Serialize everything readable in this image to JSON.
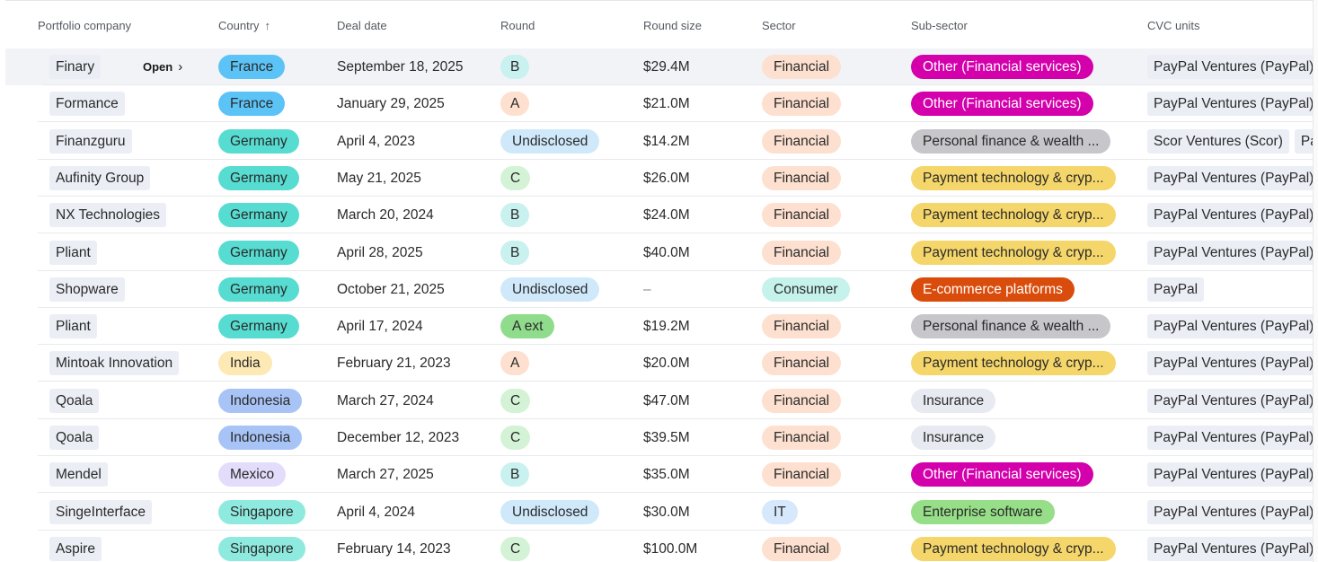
{
  "columns": {
    "company": "Portfolio company",
    "country": "Country",
    "deal_date": "Deal date",
    "round": "Round",
    "round_size": "Round size",
    "sector": "Sector",
    "sub_sector": "Sub-sector",
    "cvc_units": "CVC units"
  },
  "sort": {
    "column": "Country",
    "direction": "ascending",
    "icon": "arrow-up-icon"
  },
  "open_label": "Open",
  "colors": {
    "country": {
      "France": "#5cc3f7",
      "Germany": "#57dcd1",
      "India": "#fde9b4",
      "Indonesia": "#a8c4f7",
      "Mexico": "#e3dcfb",
      "Singapore": "#8eeade"
    },
    "round": {
      "A": "#fde0cf",
      "B": "#c9f1ef",
      "C": "#d4f3d6",
      "Undisclosed": "#cfe9fb",
      "A ext": "#8fdc8c"
    },
    "sector": {
      "Financial": "#fde0cf",
      "Consumer": "#c6f2ec",
      "IT": "#d6e8fb"
    },
    "sub_sector": {
      "Other (Financial services)": {
        "bg": "#d400ab",
        "fg": "#ffffff"
      },
      "Personal finance & wealth ...": {
        "bg": "#c6c6cb",
        "fg": "#2a2a2a"
      },
      "Payment technology & cryp...": {
        "bg": "#f5d66a",
        "fg": "#2a2a2a"
      },
      "E-commerce platforms": {
        "bg": "#d94c0c",
        "fg": "#ffffff"
      },
      "Insurance": {
        "bg": "#e8eaf1",
        "fg": "#2a2a2a"
      },
      "Enterprise software": {
        "bg": "#96de87",
        "fg": "#2a2a2a"
      }
    }
  },
  "rows": [
    {
      "company": "Finary",
      "country": "France",
      "deal_date": "September 18, 2025",
      "round": "B",
      "round_size": "$29.4M",
      "sector": "Financial",
      "sub_sector": "Other (Financial services)",
      "cvc_units": [
        "PayPal Ventures (PayPal)"
      ],
      "highlighted": true
    },
    {
      "company": "Formance",
      "country": "France",
      "deal_date": "January 29, 2025",
      "round": "A",
      "round_size": "$21.0M",
      "sector": "Financial",
      "sub_sector": "Other (Financial services)",
      "cvc_units": [
        "PayPal Ventures (PayPal)"
      ]
    },
    {
      "company": "Finanzguru",
      "country": "Germany",
      "deal_date": "April 4, 2023",
      "round": "Undisclosed",
      "round_size": "$14.2M",
      "sector": "Financial",
      "sub_sector": "Personal finance & wealth ...",
      "cvc_units": [
        "Scor Ventures (Scor)",
        "Pa"
      ]
    },
    {
      "company": "Aufinity Group",
      "country": "Germany",
      "deal_date": "May 21, 2025",
      "round": "C",
      "round_size": "$26.0M",
      "sector": "Financial",
      "sub_sector": "Payment technology & cryp...",
      "cvc_units": [
        "PayPal Ventures (PayPal)"
      ]
    },
    {
      "company": "NX Technologies",
      "country": "Germany",
      "deal_date": "March 20, 2024",
      "round": "B",
      "round_size": "$24.0M",
      "sector": "Financial",
      "sub_sector": "Payment technology & cryp...",
      "cvc_units": [
        "PayPal Ventures (PayPal)"
      ]
    },
    {
      "company": "Pliant",
      "country": "Germany",
      "deal_date": "April 28, 2025",
      "round": "B",
      "round_size": "$40.0M",
      "sector": "Financial",
      "sub_sector": "Payment technology & cryp...",
      "cvc_units": [
        "PayPal Ventures (PayPal)"
      ]
    },
    {
      "company": "Shopware",
      "country": "Germany",
      "deal_date": "October 21, 2025",
      "round": "Undisclosed",
      "round_size": "–",
      "sector": "Consumer",
      "sub_sector": "E-commerce platforms",
      "cvc_units": [
        "PayPal"
      ]
    },
    {
      "company": "Pliant",
      "country": "Germany",
      "deal_date": "April 17, 2024",
      "round": "A ext",
      "round_size": "$19.2M",
      "sector": "Financial",
      "sub_sector": "Personal finance & wealth ...",
      "cvc_units": [
        "PayPal Ventures (PayPal)"
      ]
    },
    {
      "company": "Mintoak Innovation",
      "country": "India",
      "deal_date": "February 21, 2023",
      "round": "A",
      "round_size": "$20.0M",
      "sector": "Financial",
      "sub_sector": "Payment technology & cryp...",
      "cvc_units": [
        "PayPal Ventures (PayPal)"
      ]
    },
    {
      "company": "Qoala",
      "country": "Indonesia",
      "deal_date": "March 27, 2024",
      "round": "C",
      "round_size": "$47.0M",
      "sector": "Financial",
      "sub_sector": "Insurance",
      "cvc_units": [
        "PayPal Ventures (PayPal)"
      ]
    },
    {
      "company": "Qoala",
      "country": "Indonesia",
      "deal_date": "December 12, 2023",
      "round": "C",
      "round_size": "$39.5M",
      "sector": "Financial",
      "sub_sector": "Insurance",
      "cvc_units": [
        "PayPal Ventures (PayPal)"
      ]
    },
    {
      "company": "Mendel",
      "country": "Mexico",
      "deal_date": "March 27, 2025",
      "round": "B",
      "round_size": "$35.0M",
      "sector": "Financial",
      "sub_sector": "Other (Financial services)",
      "cvc_units": [
        "PayPal Ventures (PayPal)"
      ]
    },
    {
      "company": "SingeInterface",
      "country": "Singapore",
      "deal_date": "April 4, 2024",
      "round": "Undisclosed",
      "round_size": "$30.0M",
      "sector": "IT",
      "sub_sector": "Enterprise software",
      "cvc_units": [
        "PayPal Ventures (PayPal)"
      ]
    },
    {
      "company": "Aspire",
      "country": "Singapore",
      "deal_date": "February 14, 2023",
      "round": "C",
      "round_size": "$100.0M",
      "sector": "Financial",
      "sub_sector": "Payment technology & cryp...",
      "cvc_units": [
        "PayPal Ventures (PayPal)"
      ]
    }
  ]
}
